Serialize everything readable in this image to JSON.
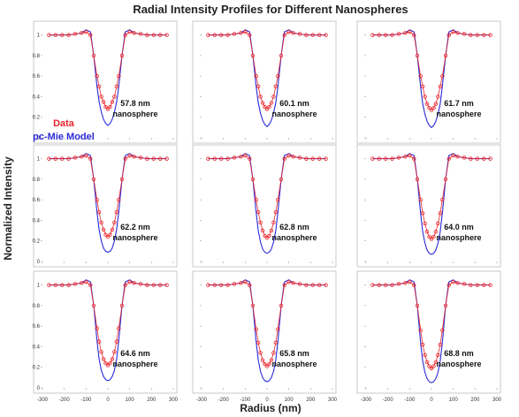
{
  "title": "Radial Intensity Profiles for Different Nanospheres",
  "xlabel": "Radius (nm)",
  "ylabel": "Normalized Intensity",
  "legend": {
    "position": "inside-top-left-panel",
    "entries": [
      {
        "label": "Data",
        "color": "#e8242a"
      },
      {
        "label": "pc-Mie Model",
        "color": "#2a2ad8"
      }
    ]
  },
  "colors": {
    "data": "#e8242a",
    "model": "#2a2ad8",
    "axis": "#999999",
    "frame": "#bbbbbb"
  },
  "chart_data": {
    "type": "line",
    "layout": "3x3 grid of panels",
    "xlim": [
      -300,
      300
    ],
    "ylim": [
      0,
      1.1
    ],
    "xticks": [
      -300,
      -200,
      -100,
      0,
      100,
      200,
      300
    ],
    "yticks": [
      0,
      0.2,
      0.4,
      0.6,
      0.8,
      1
    ],
    "ytick_labels": [
      "0",
      "0.2",
      "0.4",
      "0.6",
      "0.8",
      "1"
    ],
    "grid": false,
    "panels": [
      {
        "label_line1": "57.8 nm",
        "label_line2": "nanosphere",
        "x": [
          -270,
          -240,
          -210,
          -180,
          -150,
          -120,
          -100,
          -80,
          -65,
          -50,
          -40,
          -30,
          -20,
          -10,
          0,
          10,
          20,
          30,
          40,
          50,
          65,
          80,
          100,
          120,
          150,
          180,
          210,
          240,
          270
        ],
        "data_y": [
          1,
          1,
          1,
          1,
          1.01,
          1.02,
          1.03,
          1.0,
          0.8,
          0.6,
          0.5,
          0.4,
          0.35,
          0.3,
          0.28,
          0.3,
          0.35,
          0.4,
          0.5,
          0.6,
          0.8,
          1.0,
          1.03,
          1.02,
          1.01,
          1,
          1,
          1,
          1
        ],
        "model_y": [
          1,
          1,
          1,
          1,
          1.01,
          1.02,
          1.05,
          1.03,
          0.8,
          0.5,
          0.35,
          0.25,
          0.18,
          0.14,
          0.12,
          0.14,
          0.18,
          0.25,
          0.35,
          0.5,
          0.8,
          1.03,
          1.05,
          1.02,
          1.01,
          1,
          1,
          1,
          1
        ]
      },
      {
        "label_line1": "60.1 nm",
        "label_line2": "nanosphere",
        "x": [
          -270,
          -240,
          -210,
          -180,
          -150,
          -120,
          -100,
          -80,
          -65,
          -50,
          -40,
          -30,
          -20,
          -10,
          0,
          10,
          20,
          30,
          40,
          50,
          65,
          80,
          100,
          120,
          150,
          180,
          210,
          240,
          270
        ],
        "data_y": [
          1,
          1,
          1,
          1,
          1.01,
          1.02,
          1.03,
          1.0,
          0.8,
          0.6,
          0.5,
          0.4,
          0.34,
          0.3,
          0.28,
          0.3,
          0.34,
          0.4,
          0.5,
          0.6,
          0.8,
          1.0,
          1.03,
          1.02,
          1.01,
          1,
          1,
          1,
          1
        ],
        "model_y": [
          1,
          1,
          1,
          1,
          1.01,
          1.02,
          1.05,
          1.03,
          0.8,
          0.5,
          0.34,
          0.24,
          0.17,
          0.13,
          0.11,
          0.13,
          0.17,
          0.24,
          0.34,
          0.5,
          0.8,
          1.03,
          1.05,
          1.02,
          1.01,
          1,
          1,
          1,
          1
        ]
      },
      {
        "label_line1": "61.7 nm",
        "label_line2": "nanosphere",
        "x": [
          -270,
          -240,
          -210,
          -180,
          -150,
          -120,
          -100,
          -80,
          -65,
          -50,
          -40,
          -30,
          -20,
          -10,
          0,
          10,
          20,
          30,
          40,
          50,
          65,
          80,
          100,
          120,
          150,
          180,
          210,
          240,
          270
        ],
        "data_y": [
          1,
          1,
          1,
          1,
          1.01,
          1.02,
          1.03,
          1.0,
          0.8,
          0.6,
          0.5,
          0.4,
          0.33,
          0.29,
          0.27,
          0.29,
          0.33,
          0.4,
          0.5,
          0.6,
          0.8,
          1.0,
          1.03,
          1.02,
          1.01,
          1,
          1,
          1,
          1
        ],
        "model_y": [
          1,
          1,
          1,
          1,
          1.01,
          1.02,
          1.05,
          1.03,
          0.8,
          0.5,
          0.33,
          0.23,
          0.16,
          0.12,
          0.1,
          0.12,
          0.16,
          0.23,
          0.33,
          0.5,
          0.8,
          1.03,
          1.05,
          1.02,
          1.01,
          1,
          1,
          1,
          1
        ]
      },
      {
        "label_line1": "62.2 nm",
        "label_line2": "nanosphere",
        "x": [
          -270,
          -240,
          -210,
          -180,
          -150,
          -120,
          -100,
          -80,
          -65,
          -50,
          -40,
          -30,
          -20,
          -10,
          0,
          10,
          20,
          30,
          40,
          50,
          65,
          80,
          100,
          120,
          150,
          180,
          210,
          240,
          270
        ],
        "data_y": [
          1,
          1,
          1,
          1,
          1.01,
          1.02,
          1.03,
          1.0,
          0.8,
          0.6,
          0.48,
          0.38,
          0.31,
          0.26,
          0.24,
          0.26,
          0.31,
          0.38,
          0.48,
          0.6,
          0.8,
          1.0,
          1.03,
          1.02,
          1.01,
          1,
          1,
          1,
          1
        ],
        "model_y": [
          1,
          1,
          1,
          1,
          1.01,
          1.02,
          1.05,
          1.03,
          0.8,
          0.48,
          0.31,
          0.2,
          0.13,
          0.1,
          0.09,
          0.1,
          0.13,
          0.2,
          0.31,
          0.48,
          0.8,
          1.03,
          1.05,
          1.02,
          1.01,
          1,
          1,
          1,
          1
        ]
      },
      {
        "label_line1": "62.8 nm",
        "label_line2": "nanosphere",
        "x": [
          -270,
          -240,
          -210,
          -180,
          -150,
          -120,
          -100,
          -80,
          -65,
          -50,
          -40,
          -30,
          -20,
          -10,
          0,
          10,
          20,
          30,
          40,
          50,
          65,
          80,
          100,
          120,
          150,
          180,
          210,
          240,
          270
        ],
        "data_y": [
          1,
          1,
          1,
          1,
          1.01,
          1.02,
          1.03,
          1.0,
          0.8,
          0.6,
          0.48,
          0.38,
          0.3,
          0.25,
          0.23,
          0.25,
          0.3,
          0.38,
          0.48,
          0.6,
          0.8,
          1.0,
          1.03,
          1.02,
          1.01,
          1,
          1,
          1,
          1
        ],
        "model_y": [
          1,
          1,
          1,
          1,
          1.01,
          1.02,
          1.05,
          1.03,
          0.8,
          0.48,
          0.3,
          0.19,
          0.12,
          0.09,
          0.08,
          0.09,
          0.12,
          0.19,
          0.3,
          0.48,
          0.8,
          1.03,
          1.05,
          1.02,
          1.01,
          1,
          1,
          1,
          1
        ]
      },
      {
        "label_line1": "64.0 nm",
        "label_line2": "nanosphere",
        "x": [
          -270,
          -240,
          -210,
          -180,
          -150,
          -120,
          -100,
          -80,
          -65,
          -50,
          -40,
          -30,
          -20,
          -10,
          0,
          10,
          20,
          30,
          40,
          50,
          65,
          80,
          100,
          120,
          150,
          180,
          210,
          240,
          270
        ],
        "data_y": [
          1,
          1,
          1,
          1,
          1.01,
          1.02,
          1.03,
          1.0,
          0.8,
          0.6,
          0.47,
          0.37,
          0.29,
          0.24,
          0.22,
          0.24,
          0.29,
          0.37,
          0.47,
          0.6,
          0.8,
          1.0,
          1.03,
          1.02,
          1.01,
          1,
          1,
          1,
          1
        ],
        "model_y": [
          1,
          1,
          1,
          1,
          1.01,
          1.02,
          1.05,
          1.03,
          0.8,
          0.47,
          0.29,
          0.18,
          0.11,
          0.08,
          0.07,
          0.08,
          0.11,
          0.18,
          0.29,
          0.47,
          0.8,
          1.03,
          1.05,
          1.02,
          1.01,
          1,
          1,
          1,
          1
        ]
      },
      {
        "label_line1": "64.6 nm",
        "label_line2": "nanosphere",
        "x": [
          -270,
          -240,
          -210,
          -180,
          -150,
          -120,
          -100,
          -80,
          -65,
          -50,
          -40,
          -30,
          -20,
          -10,
          0,
          10,
          20,
          30,
          40,
          50,
          65,
          80,
          100,
          120,
          150,
          180,
          210,
          240,
          270
        ],
        "data_y": [
          1,
          1,
          1,
          1,
          1.01,
          1.02,
          1.03,
          1.0,
          0.8,
          0.58,
          0.45,
          0.35,
          0.28,
          0.24,
          0.22,
          0.24,
          0.28,
          0.35,
          0.45,
          0.58,
          0.8,
          1.0,
          1.03,
          1.02,
          1.01,
          1,
          1,
          1,
          1
        ],
        "model_y": [
          1,
          1,
          1,
          1,
          1.01,
          1.02,
          1.05,
          1.03,
          0.8,
          0.46,
          0.28,
          0.17,
          0.11,
          0.08,
          0.07,
          0.08,
          0.11,
          0.17,
          0.28,
          0.46,
          0.8,
          1.03,
          1.05,
          1.02,
          1.01,
          1,
          1,
          1,
          1
        ]
      },
      {
        "label_line1": "65.8 nm",
        "label_line2": "nanosphere",
        "x": [
          -270,
          -240,
          -210,
          -180,
          -150,
          -120,
          -100,
          -80,
          -65,
          -50,
          -40,
          -30,
          -20,
          -10,
          0,
          10,
          20,
          30,
          40,
          50,
          65,
          80,
          100,
          120,
          150,
          180,
          210,
          240,
          270
        ],
        "data_y": [
          1,
          1,
          1,
          1,
          1.01,
          1.02,
          1.03,
          1.0,
          0.8,
          0.57,
          0.44,
          0.34,
          0.27,
          0.23,
          0.21,
          0.23,
          0.27,
          0.34,
          0.44,
          0.57,
          0.8,
          1.0,
          1.03,
          1.02,
          1.01,
          1,
          1,
          1,
          1
        ],
        "model_y": [
          1,
          1,
          1,
          1,
          1.01,
          1.02,
          1.05,
          1.03,
          0.8,
          0.45,
          0.27,
          0.16,
          0.1,
          0.07,
          0.06,
          0.07,
          0.1,
          0.16,
          0.27,
          0.45,
          0.8,
          1.03,
          1.05,
          1.02,
          1.01,
          1,
          1,
          1,
          1
        ]
      },
      {
        "label_line1": "68.8 nm",
        "label_line2": "nanosphere",
        "x": [
          -270,
          -240,
          -210,
          -180,
          -150,
          -120,
          -100,
          -80,
          -65,
          -50,
          -40,
          -30,
          -20,
          -10,
          0,
          10,
          20,
          30,
          40,
          50,
          65,
          80,
          100,
          120,
          150,
          180,
          210,
          240,
          270
        ],
        "data_y": [
          1,
          1,
          1,
          1,
          1.01,
          1.02,
          1.03,
          1.0,
          0.8,
          0.56,
          0.42,
          0.32,
          0.25,
          0.21,
          0.19,
          0.21,
          0.25,
          0.32,
          0.42,
          0.56,
          0.8,
          1.0,
          1.03,
          1.02,
          1.01,
          1,
          1,
          1,
          1
        ],
        "model_y": [
          1,
          1,
          1,
          1,
          1.01,
          1.02,
          1.05,
          1.03,
          0.8,
          0.44,
          0.26,
          0.15,
          0.09,
          0.06,
          0.05,
          0.06,
          0.09,
          0.15,
          0.26,
          0.44,
          0.8,
          1.03,
          1.05,
          1.02,
          1.01,
          1,
          1,
          1,
          1
        ]
      }
    ]
  }
}
